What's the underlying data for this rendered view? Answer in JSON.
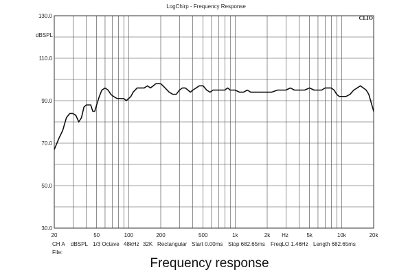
{
  "chart_data": {
    "type": "line",
    "title": "LogChirp - Frequency Response",
    "brand": "CLIO",
    "ylabel": "dBSPL",
    "xscale": "log",
    "xlim": [
      20,
      20000
    ],
    "ylim": [
      30,
      130
    ],
    "grid": true,
    "x_ticks": [
      {
        "v": 20,
        "label": "20"
      },
      {
        "v": 50,
        "label": "50"
      },
      {
        "v": 100,
        "label": "100"
      },
      {
        "v": 200,
        "label": "200"
      },
      {
        "v": 500,
        "label": "500"
      },
      {
        "v": 1000,
        "label": "1k"
      },
      {
        "v": 2000,
        "label": "2k"
      },
      {
        "v": 5000,
        "label": "5k"
      },
      {
        "v": 10000,
        "label": "10k"
      },
      {
        "v": 20000,
        "label": "20k"
      }
    ],
    "x_unit_label": "Hz",
    "y_ticks": [
      {
        "v": 130,
        "label": "130.0"
      },
      {
        "v": 110,
        "label": "110.0"
      },
      {
        "v": 90,
        "label": "90.0"
      },
      {
        "v": 70,
        "label": "70.0"
      },
      {
        "v": 50,
        "label": "50.0"
      },
      {
        "v": 30,
        "label": "30.0"
      }
    ],
    "series": [
      {
        "color": "#111111",
        "x": [
          20,
          22,
          24,
          26,
          28,
          30,
          32,
          34,
          36,
          38,
          40,
          42,
          44,
          46,
          48,
          50,
          53,
          56,
          60,
          64,
          68,
          72,
          78,
          85,
          90,
          95,
          100,
          105,
          110,
          120,
          130,
          140,
          150,
          160,
          170,
          180,
          190,
          200,
          210,
          220,
          240,
          260,
          280,
          300,
          320,
          340,
          360,
          380,
          400,
          430,
          460,
          500,
          540,
          580,
          620,
          660,
          700,
          760,
          800,
          850,
          900,
          1000,
          1100,
          1200,
          1300,
          1400,
          1500,
          1700,
          2000,
          2200,
          2500,
          2800,
          3000,
          3300,
          3600,
          4000,
          4500,
          5000,
          5500,
          6000,
          6500,
          7000,
          7500,
          8000,
          8500,
          9000,
          9500,
          10000,
          10500,
          11000,
          12000,
          13000,
          14000,
          15000,
          16000,
          17000,
          18000,
          19000,
          20000
        ],
        "y": [
          67,
          72,
          76,
          82,
          84,
          84,
          83,
          80,
          82,
          87,
          88,
          88,
          88,
          85,
          85,
          88,
          92,
          95,
          96,
          95,
          93,
          92,
          91,
          91,
          91,
          90,
          91,
          92,
          94,
          96,
          96,
          96,
          97,
          96,
          97,
          98,
          98,
          98,
          97,
          96,
          94,
          93,
          93,
          95,
          96,
          96,
          95,
          94,
          95,
          96,
          97,
          97,
          95,
          94,
          95,
          95,
          95,
          95,
          95,
          96,
          95,
          95,
          94,
          94,
          95,
          94,
          94,
          94,
          94,
          94,
          95,
          95,
          95,
          96,
          95,
          95,
          95,
          96,
          95,
          95,
          95,
          96,
          96,
          96,
          95,
          93,
          92,
          92,
          92,
          92,
          93,
          95,
          96,
          97,
          96,
          95,
          93,
          89,
          85
        ]
      }
    ]
  },
  "footer": {
    "line1": {
      "ch": "CH A",
      "unit": "dBSPL",
      "smoothing": "1/3 Octave",
      "rate": "48kHz",
      "size": "32K",
      "window": "Rectangular",
      "start": "Start 0.00ms",
      "stop": "Stop 682.65ms",
      "freqlo": "FreqLO 1.46Hz",
      "length": "Length 682.65ms"
    },
    "file": "File:"
  },
  "caption": "Frequency response"
}
